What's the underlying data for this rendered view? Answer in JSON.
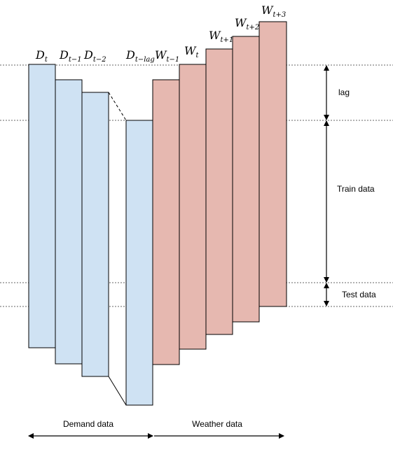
{
  "colors": {
    "demand_fill": "#cfe2f3",
    "weather_fill": "#e6b8b0",
    "outline": "#000000",
    "guide_line": "#666666"
  },
  "demand_bars": [
    {
      "symbol": "D",
      "subscript": "t"
    },
    {
      "symbol": "D",
      "subscript": "t−1"
    },
    {
      "symbol": "D",
      "subscript": "t−2"
    },
    {
      "symbol": "D",
      "subscript": "t−lag"
    }
  ],
  "weather_bars": [
    {
      "symbol": "W",
      "subscript": "t−1"
    },
    {
      "symbol": "W",
      "subscript": "t"
    },
    {
      "symbol": "W",
      "subscript": "t+1"
    },
    {
      "symbol": "W",
      "subscript": "t+2"
    },
    {
      "symbol": "W",
      "subscript": "t+3"
    }
  ],
  "brackets": {
    "lag": "lag",
    "train": "Train data",
    "test": "Test data"
  },
  "bottom_labels": {
    "demand": "Demand data",
    "weather": "Weather data"
  }
}
